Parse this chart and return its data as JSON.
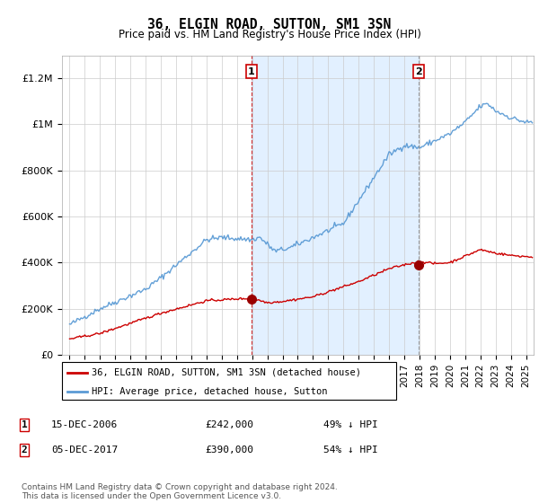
{
  "title": "36, ELGIN ROAD, SUTTON, SM1 3SN",
  "subtitle": "Price paid vs. HM Land Registry's House Price Index (HPI)",
  "ylim": [
    0,
    1300000
  ],
  "yticks": [
    0,
    200000,
    400000,
    600000,
    800000,
    1000000,
    1200000
  ],
  "ytick_labels": [
    "£0",
    "£200K",
    "£400K",
    "£600K",
    "£800K",
    "£1M",
    "£1.2M"
  ],
  "hpi_color": "#5b9bd5",
  "price_color": "#cc0000",
  "sale1_date": 2006.96,
  "sale1_price": 242000,
  "sale1_label": "1",
  "sale2_date": 2017.92,
  "sale2_price": 390000,
  "sale2_label": "2",
  "legend_line1": "36, ELGIN ROAD, SUTTON, SM1 3SN (detached house)",
  "legend_line2": "HPI: Average price, detached house, Sutton",
  "footnote": "Contains HM Land Registry data © Crown copyright and database right 2024.\nThis data is licensed under the Open Government Licence v3.0.",
  "bg_shade_color": "#ddeeff",
  "xmin": 1994.5,
  "xmax": 2025.5
}
